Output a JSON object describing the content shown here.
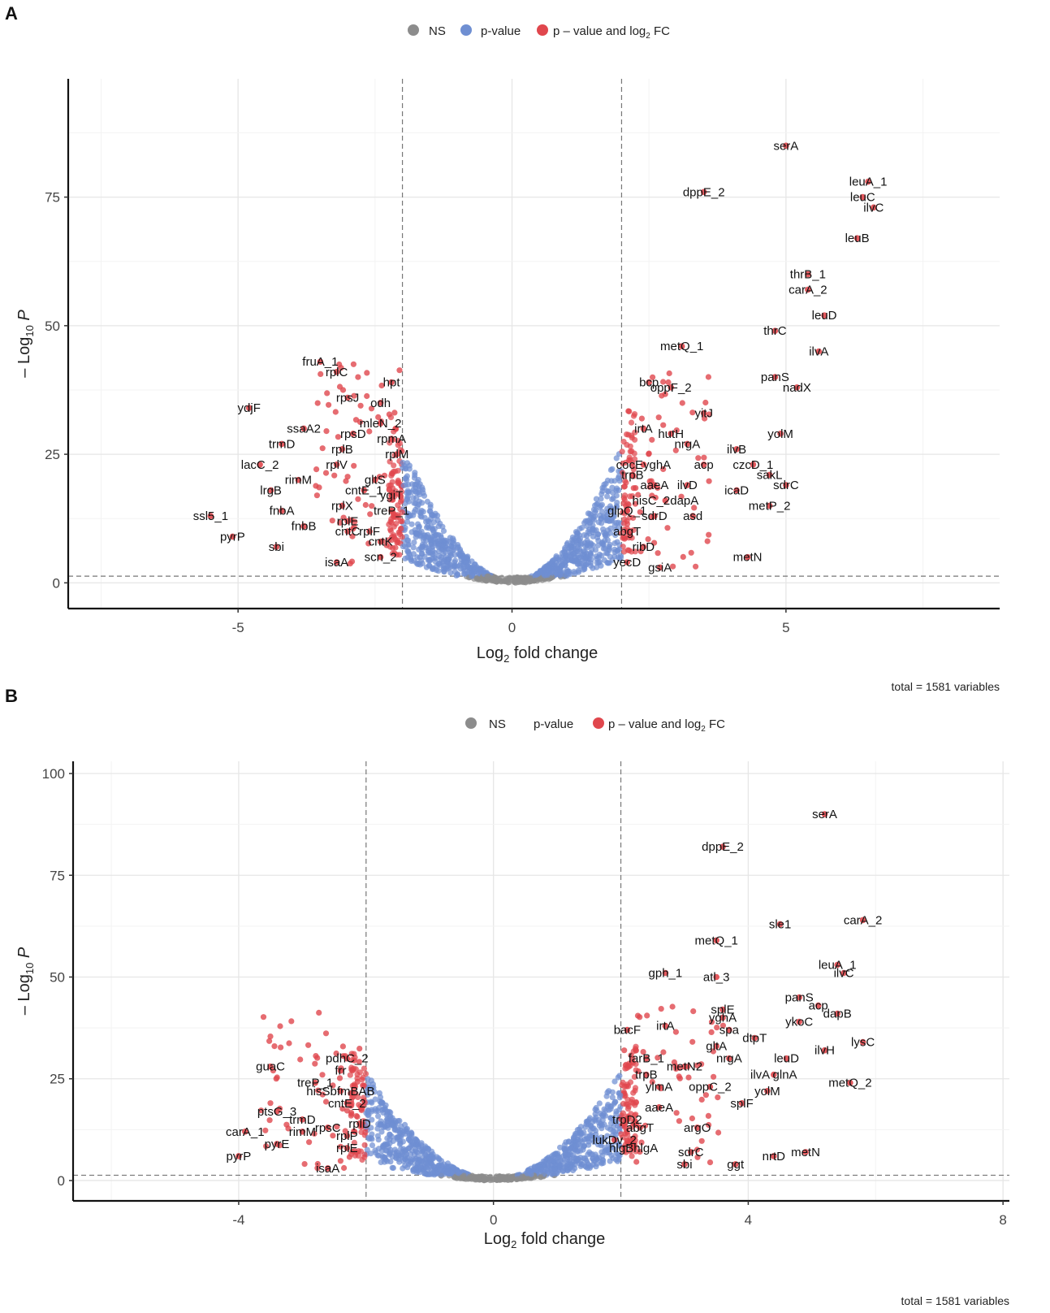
{
  "colors": {
    "ns": "#8c8c8c",
    "pvalue": "#6f8fd2",
    "both": "#e0474d"
  },
  "chart_data": [
    {
      "type": "scatter",
      "panel_letter": "A",
      "legend": [
        "NS",
        "p-value",
        "p – value and log",
        "2",
        " FC"
      ],
      "xlabel": "Log",
      "xlabel_sub": "2",
      "xlabel_tail": " fold change",
      "ylabel_prefix": "– Log",
      "ylabel_sub": "10",
      "ylabel_var": "P",
      "xlim": [
        -8.1,
        8.9
      ],
      "ylim": [
        -5,
        98
      ],
      "xticks": [
        -5,
        0,
        5
      ],
      "xtick_labels": [
        "-5",
        "0",
        "5"
      ],
      "yticks": [
        0,
        25,
        50,
        75
      ],
      "ytick_labels": [
        "0",
        "25",
        "50",
        "75"
      ],
      "fc_cutoff": 2,
      "p_cutoff": 1.3,
      "caption": "total = 1581 variables",
      "left_edge_x": -7.7,
      "right_edge_x": 5.6,
      "labeled_points": [
        {
          "x": 5.0,
          "y": 85,
          "label": "serA"
        },
        {
          "x": 6.5,
          "y": 78,
          "label": "leuA_1"
        },
        {
          "x": 6.4,
          "y": 75,
          "label": "leuC"
        },
        {
          "x": 6.6,
          "y": 73,
          "label": "ilvC"
        },
        {
          "x": 6.3,
          "y": 67,
          "label": "leuB"
        },
        {
          "x": 3.5,
          "y": 76,
          "label": "dppE_2"
        },
        {
          "x": 5.4,
          "y": 60,
          "label": "thrB_1"
        },
        {
          "x": 5.4,
          "y": 57,
          "label": "carA_2"
        },
        {
          "x": 5.7,
          "y": 52,
          "label": "leuD"
        },
        {
          "x": 4.8,
          "y": 49,
          "label": "thrC"
        },
        {
          "x": 3.1,
          "y": 46,
          "label": "metQ_1"
        },
        {
          "x": 5.6,
          "y": 45,
          "label": "ilvA"
        },
        {
          "x": 4.8,
          "y": 40,
          "label": "panS"
        },
        {
          "x": 5.2,
          "y": 38,
          "label": "nadX"
        },
        {
          "x": 2.5,
          "y": 39,
          "label": "bcp"
        },
        {
          "x": 2.9,
          "y": 38,
          "label": "oppF_2"
        },
        {
          "x": 3.5,
          "y": 33,
          "label": "yitJ"
        },
        {
          "x": 4.9,
          "y": 29,
          "label": "yolM"
        },
        {
          "x": 2.4,
          "y": 30,
          "label": "irtA"
        },
        {
          "x": 2.9,
          "y": 29,
          "label": "hutH"
        },
        {
          "x": 3.2,
          "y": 27,
          "label": "nrgA"
        },
        {
          "x": 4.1,
          "y": 26,
          "label": "ilvB"
        },
        {
          "x": 2.4,
          "y": 23,
          "label": "cocEyghA"
        },
        {
          "x": 2.2,
          "y": 21,
          "label": "trpB"
        },
        {
          "x": 3.5,
          "y": 23,
          "label": "acp"
        },
        {
          "x": 4.4,
          "y": 23,
          "label": "czcD_1"
        },
        {
          "x": 4.7,
          "y": 21,
          "label": "sakL"
        },
        {
          "x": 5.0,
          "y": 19,
          "label": "sdrC"
        },
        {
          "x": 2.6,
          "y": 19,
          "label": "aaeA"
        },
        {
          "x": 3.2,
          "y": 19,
          "label": "ilvD"
        },
        {
          "x": 4.1,
          "y": 18,
          "label": "icaD"
        },
        {
          "x": 2.8,
          "y": 16,
          "label": "hisC_2dapA"
        },
        {
          "x": 4.7,
          "y": 15,
          "label": "metP_2"
        },
        {
          "x": 2.1,
          "y": 14,
          "label": "glpQ_1"
        },
        {
          "x": 2.6,
          "y": 13,
          "label": "sdrD"
        },
        {
          "x": 3.3,
          "y": 13,
          "label": "asd"
        },
        {
          "x": 2.1,
          "y": 10,
          "label": "abgT"
        },
        {
          "x": 2.4,
          "y": 7,
          "label": "ribD"
        },
        {
          "x": 4.3,
          "y": 5,
          "label": "metN"
        },
        {
          "x": 2.1,
          "y": 4,
          "label": "yecD"
        },
        {
          "x": 2.7,
          "y": 3,
          "label": "gsiA"
        },
        {
          "x": -3.5,
          "y": 43,
          "label": "fruA_1"
        },
        {
          "x": -3.2,
          "y": 41,
          "label": "rplC"
        },
        {
          "x": -2.2,
          "y": 39,
          "label": "hpt"
        },
        {
          "x": -3.0,
          "y": 36,
          "label": "rpsJ"
        },
        {
          "x": -2.4,
          "y": 35,
          "label": "odh"
        },
        {
          "x": -4.8,
          "y": 34,
          "label": "ydjF"
        },
        {
          "x": -2.4,
          "y": 31,
          "label": "mleN_2"
        },
        {
          "x": -3.8,
          "y": 30,
          "label": "ssaA2"
        },
        {
          "x": -2.9,
          "y": 29,
          "label": "rpsD"
        },
        {
          "x": -2.2,
          "y": 28,
          "label": "rpmA"
        },
        {
          "x": -4.2,
          "y": 27,
          "label": "trmD"
        },
        {
          "x": -3.1,
          "y": 26,
          "label": "rplB"
        },
        {
          "x": -2.1,
          "y": 25,
          "label": "rplM"
        },
        {
          "x": -4.6,
          "y": 23,
          "label": "lacC_2"
        },
        {
          "x": -3.2,
          "y": 23,
          "label": "rplV"
        },
        {
          "x": -3.9,
          "y": 20,
          "label": "rimM"
        },
        {
          "x": -2.5,
          "y": 20,
          "label": "gltS"
        },
        {
          "x": -4.4,
          "y": 18,
          "label": "lrgB"
        },
        {
          "x": -2.7,
          "y": 18,
          "label": "cntE_1"
        },
        {
          "x": -2.2,
          "y": 17,
          "label": "ygiT"
        },
        {
          "x": -3.1,
          "y": 15,
          "label": "rplX"
        },
        {
          "x": -2.2,
          "y": 14,
          "label": "treP_1"
        },
        {
          "x": -4.2,
          "y": 14,
          "label": "fnbA"
        },
        {
          "x": -5.5,
          "y": 13,
          "label": "ssl5_1"
        },
        {
          "x": -3.0,
          "y": 12,
          "label": "rplE"
        },
        {
          "x": -3.8,
          "y": 11,
          "label": "fnbB"
        },
        {
          "x": -2.6,
          "y": 10,
          "label": "rplF"
        },
        {
          "x": -3.0,
          "y": 10,
          "label": "cntC"
        },
        {
          "x": -2.4,
          "y": 8,
          "label": "cntK"
        },
        {
          "x": -5.1,
          "y": 9,
          "label": "pyrP"
        },
        {
          "x": -4.3,
          "y": 7,
          "label": "sbi"
        },
        {
          "x": -2.4,
          "y": 5,
          "label": "scn_2"
        },
        {
          "x": -3.2,
          "y": 4,
          "label": "isaA"
        }
      ]
    },
    {
      "type": "scatter",
      "panel_letter": "B",
      "legend": [
        "NS",
        "p-value",
        "p – value and log",
        "2",
        " FC"
      ],
      "xlabel": "Log",
      "xlabel_sub": "2",
      "xlabel_tail": " fold change",
      "ylabel_prefix": "– Log",
      "ylabel_sub": "10",
      "ylabel_var": "P",
      "xlim": [
        -6.6,
        8.1
      ],
      "ylim": [
        -5,
        103
      ],
      "xticks": [
        -4,
        0,
        4,
        8
      ],
      "xtick_labels": [
        "-4",
        "0",
        "4",
        "8"
      ],
      "yticks": [
        0,
        25,
        50,
        75,
        100
      ],
      "ytick_labels": [
        "0",
        "25",
        "50",
        "75",
        "100"
      ],
      "fc_cutoff": 2,
      "p_cutoff": 1.3,
      "caption": "total = 1581 variables",
      "left_edge_x": -4.5,
      "right_edge_x": 5.9,
      "labeled_points": [
        {
          "x": 5.2,
          "y": 90,
          "label": "serA"
        },
        {
          "x": 3.6,
          "y": 82,
          "label": "dppE_2"
        },
        {
          "x": 4.5,
          "y": 63,
          "label": "sle1"
        },
        {
          "x": 5.8,
          "y": 64,
          "label": "carA_2"
        },
        {
          "x": 3.5,
          "y": 59,
          "label": "metQ_1"
        },
        {
          "x": 5.4,
          "y": 53,
          "label": "leuA_1"
        },
        {
          "x": 5.5,
          "y": 51,
          "label": "ilvC"
        },
        {
          "x": 2.7,
          "y": 51,
          "label": "gph_1"
        },
        {
          "x": 3.5,
          "y": 50,
          "label": "atl_3"
        },
        {
          "x": 4.8,
          "y": 45,
          "label": "panS"
        },
        {
          "x": 5.1,
          "y": 43,
          "label": "acp"
        },
        {
          "x": 5.4,
          "y": 41,
          "label": "dapB"
        },
        {
          "x": 3.6,
          "y": 42,
          "label": "splE"
        },
        {
          "x": 3.6,
          "y": 40,
          "label": "yghA"
        },
        {
          "x": 4.8,
          "y": 39,
          "label": "ykoC"
        },
        {
          "x": 2.1,
          "y": 37,
          "label": "bacF"
        },
        {
          "x": 2.7,
          "y": 38,
          "label": "irtA"
        },
        {
          "x": 3.7,
          "y": 37,
          "label": "spa"
        },
        {
          "x": 4.1,
          "y": 35,
          "label": "dtpT"
        },
        {
          "x": 5.8,
          "y": 34,
          "label": "lysC"
        },
        {
          "x": 3.5,
          "y": 33,
          "label": "gltA"
        },
        {
          "x": 5.2,
          "y": 32,
          "label": "ilvH"
        },
        {
          "x": 2.4,
          "y": 30,
          "label": "farB_1"
        },
        {
          "x": 3.7,
          "y": 30,
          "label": "nrgA"
        },
        {
          "x": 4.6,
          "y": 30,
          "label": "leuD"
        },
        {
          "x": 3.0,
          "y": 28,
          "label": "metN2"
        },
        {
          "x": 2.4,
          "y": 26,
          "label": "trpB"
        },
        {
          "x": 4.4,
          "y": 26,
          "label": "ilvA glnA"
        },
        {
          "x": 5.6,
          "y": 24,
          "label": "metQ_2"
        },
        {
          "x": 2.6,
          "y": 23,
          "label": "ylmA"
        },
        {
          "x": 3.4,
          "y": 23,
          "label": "oppC_2"
        },
        {
          "x": 4.3,
          "y": 22,
          "label": "yolM"
        },
        {
          "x": 3.9,
          "y": 19,
          "label": "splF"
        },
        {
          "x": 2.6,
          "y": 18,
          "label": "aaeA"
        },
        {
          "x": 2.1,
          "y": 15,
          "label": "trpD2"
        },
        {
          "x": 2.3,
          "y": 13,
          "label": "abgT"
        },
        {
          "x": 3.2,
          "y": 13,
          "label": "argO"
        },
        {
          "x": 1.9,
          "y": 10,
          "label": "lukDv_2"
        },
        {
          "x": 2.2,
          "y": 8,
          "label": "hlgBhlgA"
        },
        {
          "x": 3.1,
          "y": 7,
          "label": "sdrC"
        },
        {
          "x": 3.0,
          "y": 4,
          "label": "sbi"
        },
        {
          "x": 3.8,
          "y": 4,
          "label": "ggt"
        },
        {
          "x": 4.4,
          "y": 6,
          "label": "nrtD"
        },
        {
          "x": 4.9,
          "y": 7,
          "label": "metN"
        },
        {
          "x": -2.3,
          "y": 30,
          "label": "pdhC_2"
        },
        {
          "x": -2.4,
          "y": 27,
          "label": "frr"
        },
        {
          "x": -3.5,
          "y": 28,
          "label": "guaC"
        },
        {
          "x": -2.8,
          "y": 24,
          "label": "treP_1"
        },
        {
          "x": -2.4,
          "y": 22,
          "label": "hisSbfmBAB"
        },
        {
          "x": -2.3,
          "y": 19,
          "label": "cntE_2"
        },
        {
          "x": -3.4,
          "y": 17,
          "label": "ptsG_3"
        },
        {
          "x": -3.0,
          "y": 15,
          "label": "trmD"
        },
        {
          "x": -2.1,
          "y": 14,
          "label": "rplD"
        },
        {
          "x": -2.6,
          "y": 13,
          "label": "rpsC"
        },
        {
          "x": -3.0,
          "y": 12,
          "label": "rimM"
        },
        {
          "x": -3.9,
          "y": 12,
          "label": "carA_1"
        },
        {
          "x": -2.3,
          "y": 11,
          "label": "rplP"
        },
        {
          "x": -3.4,
          "y": 9,
          "label": "pyrE"
        },
        {
          "x": -2.3,
          "y": 8,
          "label": "rplE"
        },
        {
          "x": -4.0,
          "y": 6,
          "label": "pyrP"
        },
        {
          "x": -2.6,
          "y": 3,
          "label": "isaA"
        }
      ]
    }
  ]
}
